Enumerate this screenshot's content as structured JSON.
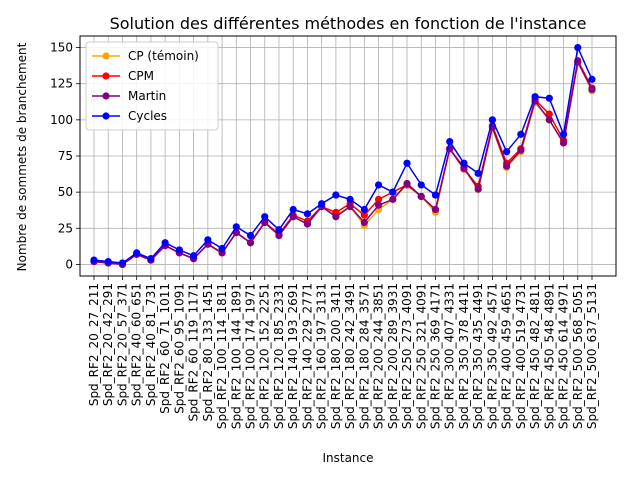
{
  "chart_data": {
    "type": "line",
    "title": "Solution des différentes méthodes en fonction de l'instance",
    "xlabel": "Instance",
    "ylabel": "Nombre de sommets de branchement",
    "ylim": [
      -8,
      158
    ],
    "yticks": [
      0,
      25,
      50,
      75,
      100,
      125,
      150
    ],
    "grid": true,
    "legend_position": "top-left",
    "categories": [
      "Spd_RF2_20_27_211",
      "Spd_RF2_20_42_291",
      "Spd_RF2_20_57_371",
      "Spd_RF2_40_60_651",
      "Spd_RF2_40_81_731",
      "Spd_RF2_60_71_1011",
      "Spd_RF2_60_95_1091",
      "Spd_RF2_60_119_1171",
      "Spd_RF2_80_133_1451",
      "Spd_RF2_100_114_1811",
      "Spd_RF2_100_144_1891",
      "Spd_RF2_100_174_1971",
      "Spd_RF2_120_152_2251",
      "Spd_RF2_120_185_2331",
      "Spd_RF2_140_193_2691",
      "Spd_RF2_140_229_2771",
      "Spd_RF2_160_197_3131",
      "Spd_RF2_180_200_3411",
      "Spd_RF2_180_242_3491",
      "Spd_RF2_180_284_3571",
      "Spd_RF2_200_244_3851",
      "Spd_RF2_200_289_3931",
      "Spd_RF2_250_273_4091",
      "Spd_RF2_250_321_4091",
      "Spd_RF2_250_369_4171",
      "Spd_RF2_300_407_4331",
      "Spd_RF2_350_378_4411",
      "Spd_RF2_350_435_4491",
      "Spd_RF2_350_492_4571",
      "Spd_RF2_400_459_4651",
      "Spd_RF2_400_519_4731",
      "Spd_RF2_450_482_4811",
      "Spd_RF2_450_548_4891",
      "Spd_RF2_450_614_4971",
      "Spd_RF2_500_568_5051",
      "Spd_RF2_500_637_5131"
    ],
    "series": [
      {
        "name": "CP (témoin)",
        "color": "#ffa500",
        "values": [
          2,
          1,
          0,
          7,
          3,
          13,
          8,
          4,
          14,
          8,
          22,
          15,
          29,
          20,
          33,
          28,
          40,
          34,
          40,
          27,
          38,
          45,
          55,
          47,
          36,
          80,
          66,
          52,
          94,
          67,
          78,
          112,
          100,
          84,
          140,
          120
        ]
      },
      {
        "name": "CPM",
        "color": "#ff0000",
        "values": [
          2,
          1,
          0,
          7,
          3,
          13,
          8,
          4,
          14,
          8,
          22,
          15,
          29,
          21,
          34,
          30,
          40,
          36,
          42,
          34,
          45,
          50,
          55,
          47,
          38,
          80,
          66,
          54,
          96,
          70,
          80,
          114,
          104,
          86,
          141,
          122
        ]
      },
      {
        "name": "Martin",
        "color": "#800080",
        "values": [
          2,
          1,
          0,
          7,
          3,
          13,
          8,
          4,
          14,
          8,
          22,
          15,
          29,
          20,
          33,
          28,
          40,
          33,
          40,
          29,
          41,
          45,
          56,
          47,
          38,
          80,
          67,
          52,
          95,
          68,
          79,
          113,
          100,
          84,
          140,
          121
        ]
      },
      {
        "name": "Cycles",
        "color": "#0000ff",
        "values": [
          3,
          2,
          1,
          8,
          4,
          15,
          10,
          6,
          17,
          11,
          26,
          20,
          33,
          24,
          38,
          35,
          42,
          48,
          45,
          38,
          55,
          50,
          70,
          55,
          48,
          85,
          70,
          63,
          100,
          78,
          90,
          116,
          115,
          90,
          150,
          128
        ]
      }
    ]
  }
}
